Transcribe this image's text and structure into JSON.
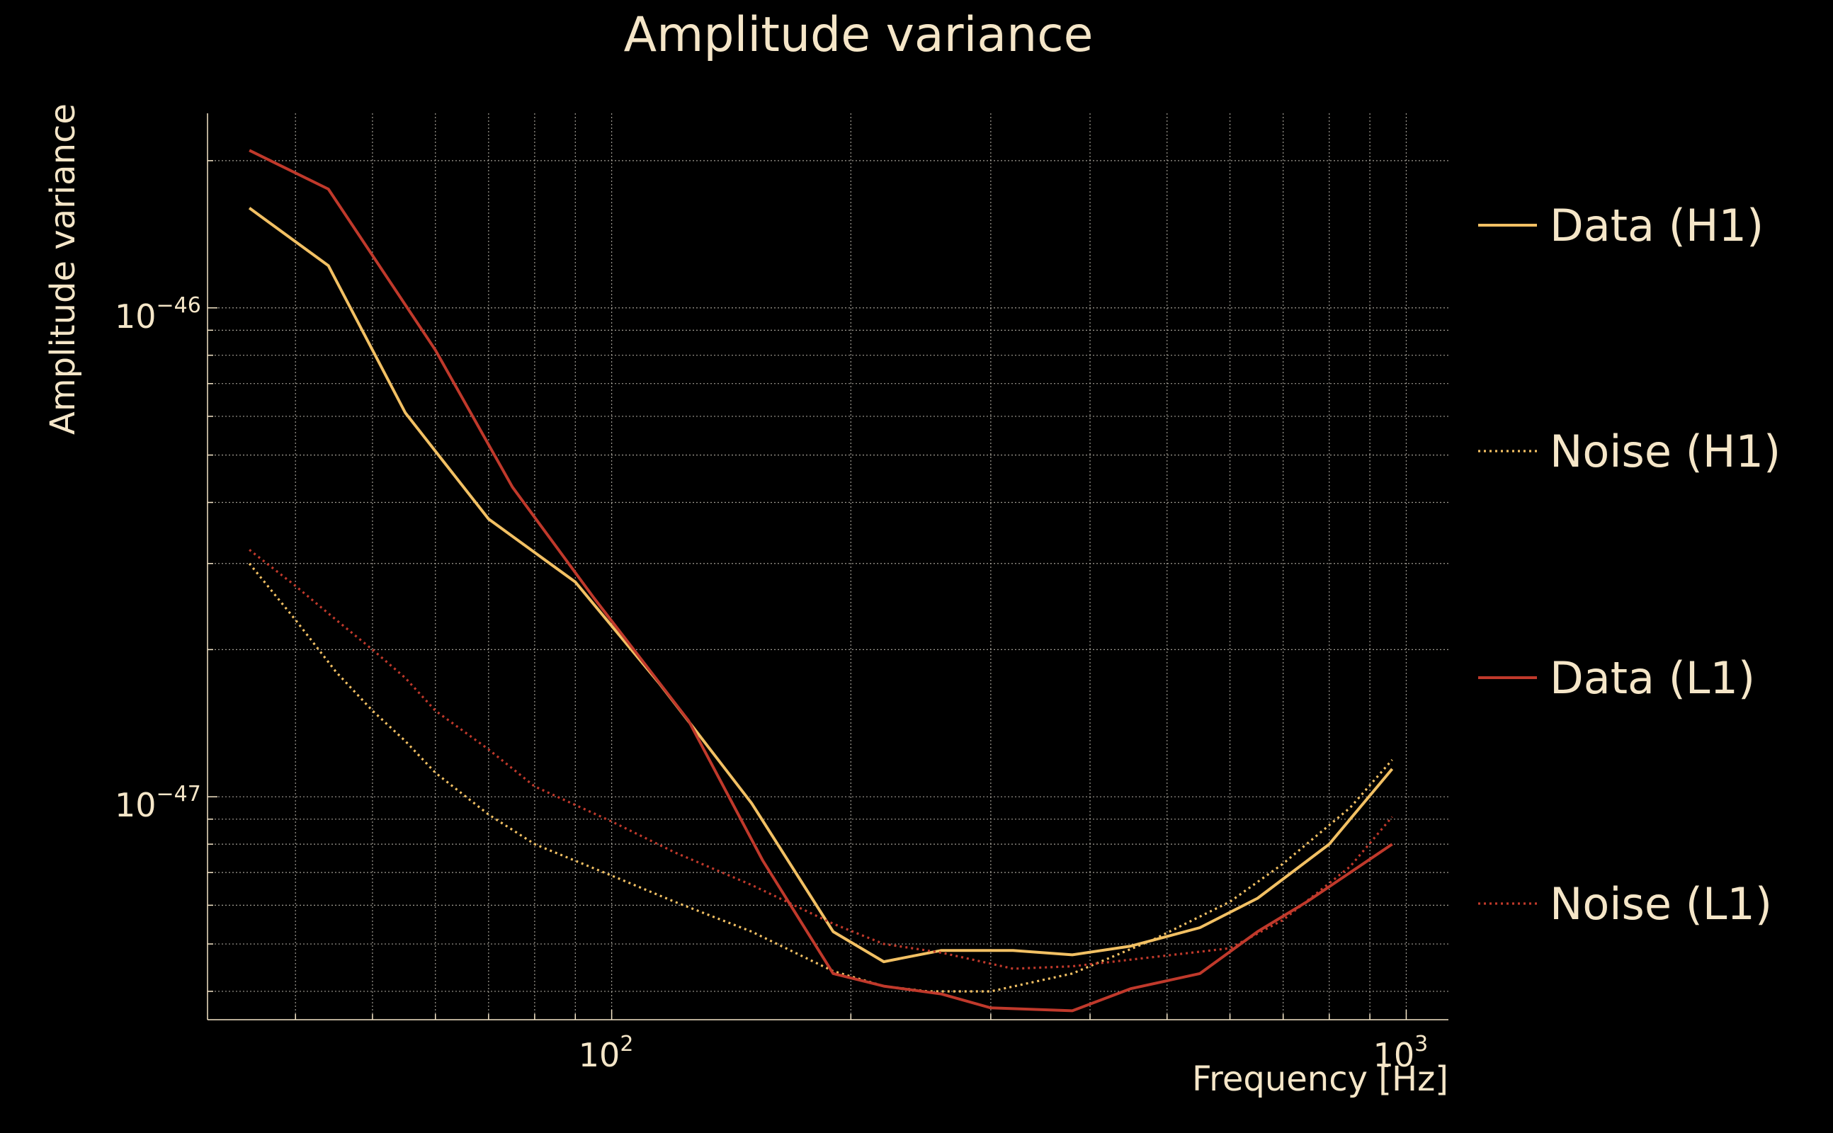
{
  "chart_data": {
    "type": "line",
    "title": "Amplitude variance",
    "xlabel": "Frequency [Hz]",
    "ylabel": "Amplitude variance",
    "xscale": "log",
    "yscale": "log",
    "xlim": [
      31,
      1130
    ],
    "ylim": [
      3.5e-48,
      2.5e-46
    ],
    "grid": true,
    "legend_position": "right",
    "x_ticks": [
      {
        "base": "10",
        "exp": "2",
        "value": 100
      },
      {
        "base": "10",
        "exp": "3",
        "value": 1000
      }
    ],
    "y_ticks": [
      {
        "base": "10",
        "exp": "−46",
        "value": 1e-46
      },
      {
        "base": "10",
        "exp": "−47",
        "value": 1e-47
      }
    ],
    "series": [
      {
        "name": "Data (H1)",
        "color": "#f2c063",
        "style": "solid",
        "x": [
          35,
          44,
          55,
          70,
          90,
          115,
          150,
          190,
          220,
          260,
          320,
          380,
          450,
          550,
          650,
          800,
          960
        ],
        "y": [
          1.6e-46,
          1.22e-46,
          6.1e-47,
          3.7e-47,
          2.75e-47,
          1.7e-47,
          9.7e-48,
          5.3e-48,
          4.6e-48,
          4.85e-48,
          4.85e-48,
          4.75e-48,
          4.95e-48,
          5.4e-48,
          6.2e-48,
          8e-48,
          1.14e-47
        ]
      },
      {
        "name": "Noise (H1)",
        "color": "#f2c063",
        "style": "dotted",
        "x": [
          35,
          40,
          45,
          50,
          55,
          60,
          70,
          80,
          100,
          120,
          150,
          190,
          220,
          250,
          300,
          380,
          480,
          600,
          700,
          850,
          960
        ],
        "y": [
          3e-47,
          2.3e-47,
          1.8e-47,
          1.5e-47,
          1.3e-47,
          1.12e-47,
          9.2e-48,
          8e-48,
          6.9e-48,
          6.1e-48,
          5.3e-48,
          4.4e-48,
          4.1e-48,
          4e-48,
          4e-48,
          4.35e-48,
          5.1e-48,
          6.1e-48,
          7.3e-48,
          9.5e-48,
          1.19e-47
        ]
      },
      {
        "name": "Data (L1)",
        "color": "#c0392b",
        "style": "solid",
        "x": [
          35,
          44,
          60,
          75,
          95,
          125,
          155,
          190,
          220,
          260,
          300,
          380,
          450,
          550,
          650,
          750,
          960
        ],
        "y": [
          2.1e-46,
          1.75e-46,
          8.2e-47,
          4.3e-47,
          2.55e-47,
          1.43e-47,
          7.4e-48,
          4.35e-48,
          4.1e-48,
          3.95e-48,
          3.7e-48,
          3.65e-48,
          4.05e-48,
          4.35e-48,
          5.3e-48,
          6.1e-48,
          8e-48
        ]
      },
      {
        "name": "Noise (L1)",
        "color": "#c0392b",
        "style": "dotted",
        "x": [
          35,
          40,
          45,
          50,
          55,
          60,
          70,
          80,
          100,
          120,
          150,
          190,
          220,
          260,
          320,
          380,
          480,
          600,
          700,
          850,
          960
        ],
        "y": [
          3.2e-47,
          2.7e-47,
          2.3e-47,
          2e-47,
          1.75e-47,
          1.5e-47,
          1.25e-47,
          1.05e-47,
          8.9e-48,
          7.7e-48,
          6.6e-48,
          5.5e-48,
          5e-48,
          4.8e-48,
          4.45e-48,
          4.5e-48,
          4.7e-48,
          4.9e-48,
          5.6e-48,
          7.2e-48,
          9.1e-48
        ]
      }
    ]
  }
}
